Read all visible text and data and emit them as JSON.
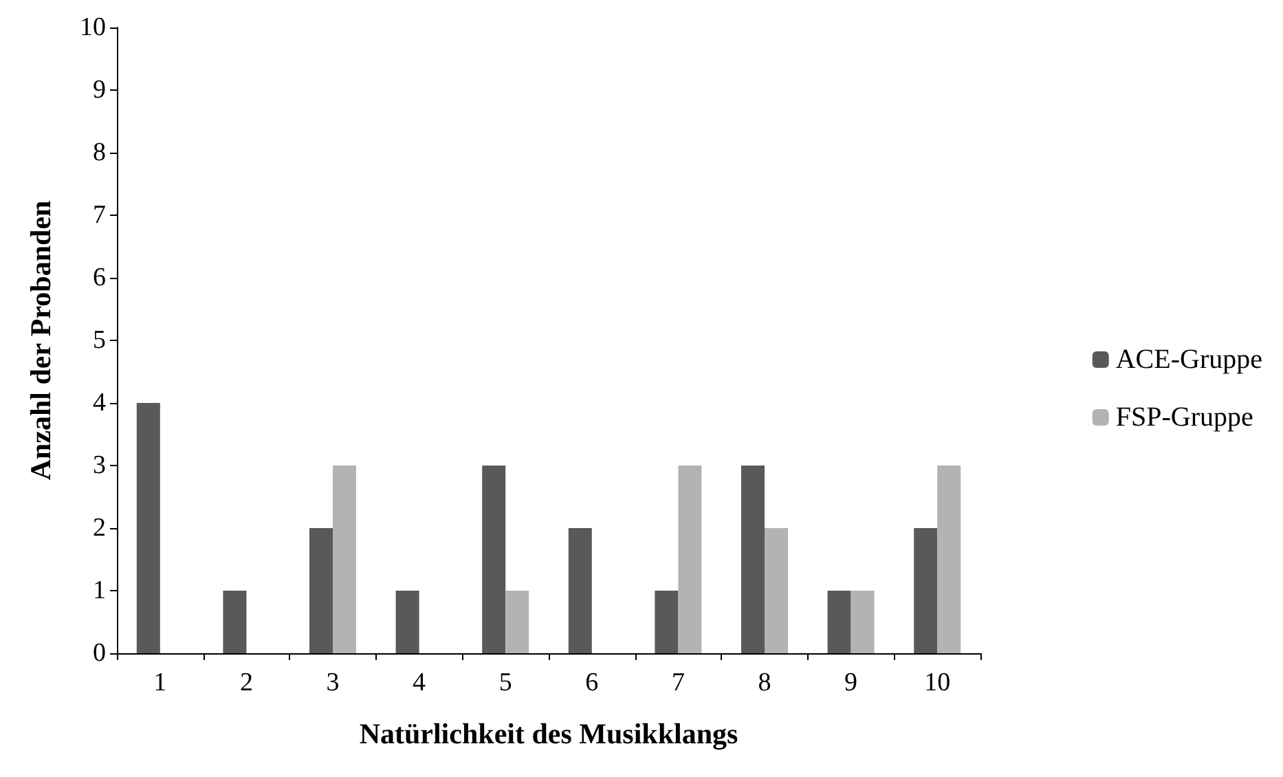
{
  "chart_data": {
    "type": "bar",
    "xlabel": "Natürlichkeit des Musikklangs",
    "ylabel": "Anzahl der Probanden",
    "categories": [
      "1",
      "2",
      "3",
      "4",
      "5",
      "6",
      "7",
      "8",
      "9",
      "10"
    ],
    "series": [
      {
        "name": "ACE-Gruppe",
        "color": "#595959",
        "values": [
          4,
          1,
          2,
          1,
          3,
          2,
          1,
          3,
          1,
          2
        ]
      },
      {
        "name": "FSP-Gruppe",
        "color": "#b3b3b3",
        "values": [
          0,
          0,
          3,
          0,
          1,
          0,
          3,
          2,
          1,
          3
        ]
      }
    ],
    "ylim": [
      0,
      10
    ],
    "yticks": [
      0,
      1,
      2,
      3,
      4,
      5,
      6,
      7,
      8,
      9,
      10
    ],
    "grid": false,
    "legend": "right"
  }
}
